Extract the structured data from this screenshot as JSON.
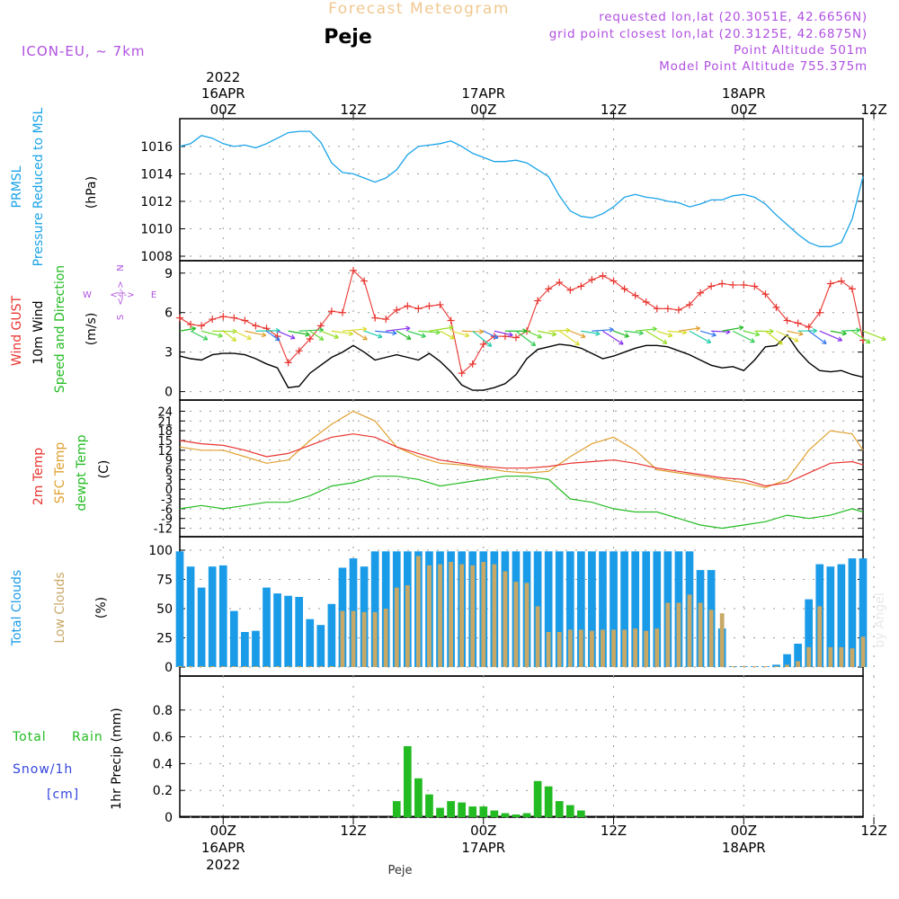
{
  "header": {
    "product": "Forecast Meteogram",
    "location": "Peje",
    "model": "ICON-EU, ~ 7km",
    "requested": "requested lon,lat (20.3051E, 42.6656N)",
    "grid": "grid point closest lon,lat (20.3125E, 42.6875N)",
    "point_alt": "Point Altitude 501m",
    "model_alt": "Model Point Altitude 755.375m",
    "footer": "Peje",
    "watermark": "by Angel"
  },
  "time_axis": {
    "start_hour": -4,
    "end_hour": 59,
    "ticks": [
      {
        "hour": 0,
        "label": "00Z",
        "date": "16APR",
        "year": "2022"
      },
      {
        "hour": 12,
        "label": "12Z"
      },
      {
        "hour": 24,
        "label": "00Z",
        "date": "17APR"
      },
      {
        "hour": 36,
        "label": "12Z"
      },
      {
        "hour": 48,
        "label": "00Z",
        "date": "18APR"
      },
      {
        "hour": 60,
        "label": "12Z"
      }
    ]
  },
  "labels": {
    "pressure": [
      "PRMSL",
      "Pressure Reduced to MSL",
      "(hPa)"
    ],
    "wind": [
      "Wind GUST",
      "10m Wind",
      "Speed and Direction",
      "(m/s)"
    ],
    "compass": {
      "w": "W",
      "e": "E",
      "n": "N",
      "s": "S"
    },
    "temp": [
      "2m Temp",
      "SFC Temp",
      "dewpt Temp",
      "(C)"
    ],
    "clouds": [
      "Total Clouds",
      "Low Clouds",
      "(%)"
    ],
    "precip": [
      "Total",
      "Rain",
      "Snow/1h",
      "[cm]",
      "1hr Precip (mm)"
    ]
  },
  "colors": {
    "pressure": "#1aa3e8",
    "gust": "#e8342f",
    "wind": "#000000",
    "t2m": "#e8342f",
    "tsfc": "#e0a030",
    "dew": "#22bb22",
    "total_cloud": "#1a9be8",
    "low_cloud": "#c8a866",
    "rain": "#22bb22",
    "snow": "#3344dd",
    "purple": "#b050e0",
    "header_orange": "#f0c890"
  },
  "chart_data": [
    {
      "type": "line",
      "title": "PRMSL Pressure Reduced to MSL",
      "ylabel": "(hPa)",
      "ylim": [
        1008,
        1017.5
      ],
      "yticks": [
        1008,
        1010,
        1012,
        1014,
        1016
      ],
      "series": [
        {
          "name": "PRMSL",
          "x": [
            -4,
            -3,
            -2,
            -1,
            0,
            1,
            2,
            3,
            4,
            5,
            6,
            7,
            8,
            9,
            10,
            11,
            12,
            13,
            14,
            15,
            16,
            17,
            18,
            19,
            20,
            21,
            22,
            23,
            24,
            25,
            26,
            27,
            28,
            29,
            30,
            31,
            32,
            33,
            34,
            35,
            36,
            37,
            38,
            39,
            40,
            41,
            42,
            43,
            44,
            45,
            46,
            47,
            48,
            49,
            50,
            51,
            52,
            53,
            54,
            55,
            56,
            57,
            58,
            59
          ],
          "values": [
            1016.0,
            1016.2,
            1016.8,
            1016.6,
            1016.2,
            1016.0,
            1016.1,
            1015.9,
            1016.2,
            1016.6,
            1017.0,
            1017.1,
            1017.1,
            1016.3,
            1014.8,
            1014.1,
            1014.0,
            1013.7,
            1013.4,
            1013.7,
            1014.3,
            1015.4,
            1016.0,
            1016.1,
            1016.2,
            1016.4,
            1016.0,
            1015.5,
            1015.2,
            1014.9,
            1014.9,
            1015.0,
            1014.8,
            1014.3,
            1013.8,
            1012.4,
            1011.3,
            1010.9,
            1010.8,
            1011.1,
            1011.6,
            1012.3,
            1012.5,
            1012.3,
            1012.2,
            1012.0,
            1011.9,
            1011.6,
            1011.8,
            1012.1,
            1012.1,
            1012.4,
            1012.5,
            1012.3,
            1011.8,
            1011.0,
            1010.3,
            1009.6,
            1009.0,
            1008.7,
            1008.7,
            1009.0,
            1010.7,
            1013.8
          ]
        }
      ]
    },
    {
      "type": "line",
      "title": "Wind GUST / 10m Wind Speed and Direction",
      "ylabel": "(m/s)",
      "ylim": [
        -0.3,
        9.6
      ],
      "yticks": [
        0,
        3,
        6,
        9
      ],
      "series": [
        {
          "name": "Wind GUST",
          "x": [
            -4,
            -3,
            -2,
            -1,
            0,
            1,
            2,
            3,
            4,
            5,
            6,
            7,
            8,
            9,
            10,
            11,
            12,
            13,
            14,
            15,
            16,
            17,
            18,
            19,
            20,
            21,
            22,
            23,
            24,
            25,
            26,
            27,
            28,
            29,
            30,
            31,
            32,
            33,
            34,
            35,
            36,
            37,
            38,
            39,
            40,
            41,
            42,
            43,
            44,
            45,
            46,
            47,
            48,
            49,
            50,
            51,
            52,
            53,
            54,
            55,
            56,
            57,
            58,
            59
          ],
          "values": [
            5.6,
            5.1,
            5.0,
            5.5,
            5.7,
            5.6,
            5.4,
            5.0,
            4.8,
            4.2,
            2.2,
            3.1,
            4.0,
            5.0,
            6.1,
            6.0,
            9.2,
            8.4,
            5.6,
            5.5,
            6.2,
            6.5,
            6.3,
            6.5,
            6.6,
            5.4,
            1.4,
            2.1,
            3.6,
            4.2,
            4.2,
            4.1,
            4.6,
            6.9,
            7.8,
            8.3,
            7.7,
            8.0,
            8.5,
            8.8,
            8.4,
            7.8,
            7.3,
            6.8,
            6.3,
            6.3,
            6.2,
            6.6,
            7.5,
            8.0,
            8.2,
            8.1,
            8.1,
            8.0,
            7.4,
            6.4,
            5.4,
            5.2,
            4.9,
            6.0,
            8.2,
            8.4,
            7.8,
            3.9
          ]
        },
        {
          "name": "10m Wind",
          "x": [
            -4,
            -3,
            -2,
            -1,
            0,
            1,
            2,
            3,
            4,
            5,
            6,
            7,
            8,
            9,
            10,
            11,
            12,
            13,
            14,
            15,
            16,
            17,
            18,
            19,
            20,
            21,
            22,
            23,
            24,
            25,
            26,
            27,
            28,
            29,
            30,
            31,
            32,
            33,
            34,
            35,
            36,
            37,
            38,
            39,
            40,
            41,
            42,
            43,
            44,
            45,
            46,
            47,
            48,
            49,
            50,
            51,
            52,
            53,
            54,
            55,
            56,
            57,
            58,
            59
          ],
          "values": [
            2.7,
            2.5,
            2.4,
            2.8,
            2.9,
            2.9,
            2.8,
            2.5,
            2.1,
            1.8,
            0.3,
            0.4,
            1.4,
            2.0,
            2.6,
            3.0,
            3.5,
            3.0,
            2.4,
            2.6,
            2.8,
            2.6,
            2.4,
            2.9,
            2.3,
            1.5,
            0.5,
            0.1,
            0.1,
            0.3,
            0.6,
            1.3,
            2.5,
            3.2,
            3.4,
            3.6,
            3.5,
            3.3,
            2.9,
            2.5,
            2.7,
            3.0,
            3.3,
            3.5,
            3.5,
            3.4,
            3.1,
            2.8,
            2.4,
            2.0,
            1.8,
            1.9,
            1.6,
            2.4,
            3.4,
            3.5,
            4.3,
            3.1,
            2.2,
            1.6,
            1.5,
            1.6,
            1.3,
            1.1
          ]
        }
      ]
    },
    {
      "type": "line",
      "title": "2m Temp / SFC Temp / dewpt Temp",
      "ylabel": "(C)",
      "ylim": [
        -13.5,
        25.5
      ],
      "yticks": [
        -12,
        -9,
        -6,
        -3,
        0,
        3,
        6,
        9,
        12,
        15,
        18,
        21,
        24
      ],
      "series": [
        {
          "name": "2m Temp",
          "x": [
            -4,
            -2,
            0,
            2,
            4,
            6,
            8,
            10,
            12,
            14,
            16,
            18,
            20,
            22,
            24,
            26,
            28,
            30,
            32,
            34,
            36,
            38,
            40,
            42,
            44,
            46,
            48,
            50,
            52,
            54,
            56,
            58,
            59
          ],
          "values": [
            15,
            14,
            13.5,
            12,
            10,
            11,
            13.5,
            16,
            17,
            16,
            13,
            11,
            9,
            8,
            7,
            6.5,
            6.5,
            7,
            8,
            8.5,
            9,
            8,
            6.5,
            5.5,
            4.5,
            3.5,
            3,
            1,
            2,
            5,
            8,
            8.5,
            7.5
          ]
        },
        {
          "name": "SFC Temp",
          "x": [
            -4,
            -2,
            0,
            2,
            4,
            6,
            8,
            10,
            12,
            14,
            16,
            18,
            20,
            22,
            24,
            26,
            28,
            30,
            32,
            34,
            36,
            38,
            40,
            42,
            44,
            46,
            48,
            50,
            52,
            54,
            56,
            58,
            59
          ],
          "values": [
            13,
            12,
            12,
            10,
            8,
            9,
            15,
            20,
            24,
            21,
            13,
            10,
            8,
            7.5,
            6.5,
            5.5,
            5,
            5.5,
            10,
            14,
            16,
            12,
            6,
            5,
            4,
            3,
            2,
            0.5,
            3,
            12,
            18,
            17,
            12
          ]
        },
        {
          "name": "dewpt Temp",
          "x": [
            -4,
            -2,
            0,
            2,
            4,
            6,
            8,
            10,
            12,
            14,
            16,
            18,
            20,
            22,
            24,
            26,
            28,
            30,
            32,
            34,
            36,
            38,
            40,
            42,
            44,
            46,
            48,
            50,
            52,
            54,
            56,
            58,
            59
          ],
          "values": [
            -6,
            -5,
            -6,
            -5,
            -4,
            -4,
            -2,
            1,
            2,
            4,
            4,
            3,
            1,
            2,
            3,
            4,
            4,
            3,
            -3,
            -4,
            -6,
            -7,
            -7,
            -9,
            -11,
            -12,
            -11,
            -10,
            -8,
            -9,
            -8,
            -6,
            -7
          ]
        }
      ]
    },
    {
      "type": "bar",
      "title": "Total Clouds / Low Clouds",
      "ylabel": "(%)",
      "ylim": [
        0,
        100
      ],
      "yticks": [
        0,
        25,
        50,
        75,
        100
      ],
      "series": [
        {
          "name": "Total Clouds",
          "x": [
            -4,
            -3,
            -2,
            -1,
            0,
            1,
            2,
            3,
            4,
            5,
            6,
            7,
            8,
            9,
            10,
            11,
            12,
            13,
            14,
            15,
            16,
            17,
            18,
            19,
            20,
            21,
            22,
            23,
            24,
            25,
            26,
            27,
            28,
            29,
            30,
            31,
            32,
            33,
            34,
            35,
            36,
            37,
            38,
            39,
            40,
            41,
            42,
            43,
            44,
            45,
            46,
            47,
            48,
            49,
            50,
            51,
            52,
            53,
            54,
            55,
            56,
            57,
            58,
            59
          ],
          "values": [
            99,
            86,
            68,
            86,
            87,
            48,
            30,
            31,
            68,
            63,
            61,
            60,
            41,
            36,
            54,
            85,
            93,
            86,
            99,
            99,
            99,
            99,
            99,
            99,
            99,
            99,
            99,
            99,
            99,
            99,
            99,
            99,
            99,
            99,
            99,
            99,
            99,
            99,
            99,
            99,
            99,
            99,
            99,
            99,
            99,
            99,
            99,
            99,
            83,
            83,
            33,
            0,
            0,
            0,
            0,
            2,
            11,
            20,
            58,
            88,
            86,
            88,
            93,
            93
          ]
        },
        {
          "name": "Low Clouds",
          "x": [
            -4,
            -3,
            -2,
            -1,
            0,
            1,
            2,
            3,
            4,
            5,
            6,
            7,
            8,
            9,
            10,
            11,
            12,
            13,
            14,
            15,
            16,
            17,
            18,
            19,
            20,
            21,
            22,
            23,
            24,
            25,
            26,
            27,
            28,
            29,
            30,
            31,
            32,
            33,
            34,
            35,
            36,
            37,
            38,
            39,
            40,
            41,
            42,
            43,
            44,
            45,
            46,
            47,
            48,
            49,
            50,
            51,
            52,
            53,
            54,
            55,
            56,
            57,
            58,
            59
          ],
          "values": [
            0,
            0,
            0,
            0,
            0,
            0,
            0,
            0,
            0,
            0,
            0,
            0,
            0,
            0,
            0,
            48,
            48,
            47,
            47,
            50,
            68,
            70,
            95,
            87,
            88,
            90,
            88,
            87,
            90,
            88,
            82,
            73,
            72,
            52,
            30,
            30,
            32,
            32,
            31,
            32,
            32,
            32,
            33,
            31,
            33,
            55,
            55,
            62,
            55,
            49,
            46,
            0,
            0,
            0,
            0,
            0,
            2,
            5,
            17,
            52,
            17,
            17,
            16,
            26
          ]
        }
      ]
    },
    {
      "type": "bar",
      "title": "1hr Precip (mm)",
      "ylabel": "1hr Precip (mm)",
      "ylim": [
        0,
        1.0
      ],
      "yticks": [
        0,
        0.2,
        0.4,
        0.6,
        0.8
      ],
      "series": [
        {
          "name": "Total Rain",
          "x": [
            16,
            17,
            18,
            19,
            20,
            21,
            22,
            23,
            24,
            25,
            26,
            27,
            28,
            29,
            30,
            31,
            32,
            33
          ],
          "values": [
            0.12,
            0.53,
            0.29,
            0.17,
            0.07,
            0.12,
            0.11,
            0.08,
            0.08,
            0.05,
            0.03,
            0.02,
            0.03,
            0.27,
            0.23,
            0.12,
            0.09,
            0.05
          ]
        }
      ]
    }
  ]
}
